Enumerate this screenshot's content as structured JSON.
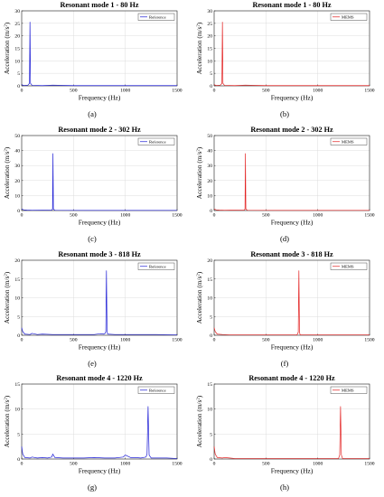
{
  "chart_data": [
    {
      "type": "line",
      "title": "Resonant mode 1 - 80 Hz",
      "xlabel": "Frequency (Hz)",
      "ylabel": "Acceleration (m/s²)",
      "ylabel_main": "Acceleration (m/s",
      "ylabel_sup": "2",
      "ylabel_end": ")",
      "xlim": [
        0,
        1500
      ],
      "ylim": [
        0,
        30
      ],
      "xticks": [
        0,
        500,
        1000,
        1500
      ],
      "yticks": [
        0,
        5,
        10,
        15,
        20,
        25,
        30
      ],
      "grid": true,
      "legend_position": "top-right",
      "color": "#1f1fd6",
      "series": [
        {
          "name": "Reference",
          "x": [
            0,
            15,
            30,
            60,
            75,
            80,
            85,
            100,
            200,
            300,
            500,
            1000,
            1500
          ],
          "y": [
            0.5,
            0.2,
            0.2,
            0.3,
            1.0,
            25.5,
            1.0,
            0.2,
            0.1,
            0.3,
            0.1,
            0.1,
            0.1
          ]
        }
      ],
      "caption": "(a)"
    },
    {
      "type": "line",
      "title": "Resonant mode 1 - 80 Hz",
      "xlabel": "Frequency (Hz)",
      "ylabel": "Acceleration (m/s²)",
      "ylabel_main": "Acceleration (m/s",
      "ylabel_sup": "2",
      "ylabel_end": ")",
      "xlim": [
        0,
        1500
      ],
      "ylim": [
        0,
        30
      ],
      "xticks": [
        0,
        500,
        1000,
        1500
      ],
      "yticks": [
        0,
        5,
        10,
        15,
        20,
        25,
        30
      ],
      "grid": true,
      "legend_position": "top-right",
      "color": "#e32222",
      "series": [
        {
          "name": "MEMS",
          "x": [
            0,
            15,
            30,
            60,
            75,
            80,
            85,
            100,
            200,
            300,
            500,
            1000,
            1500
          ],
          "y": [
            0.5,
            0.2,
            0.2,
            0.3,
            1.0,
            25.5,
            1.0,
            0.2,
            0.1,
            0.3,
            0.1,
            0.1,
            0.1
          ]
        }
      ],
      "caption": "(b)"
    },
    {
      "type": "line",
      "title": "Resonant mode 2 - 302 Hz",
      "xlabel": "Frequency (Hz)",
      "ylabel": "Acceleration (m/s²)",
      "ylabel_main": "Acceleration (m/s",
      "ylabel_sup": "2",
      "ylabel_end": ")",
      "xlim": [
        0,
        1500
      ],
      "ylim": [
        0,
        50
      ],
      "xticks": [
        0,
        500,
        1000,
        1500
      ],
      "yticks": [
        0,
        10,
        20,
        30,
        40,
        50
      ],
      "grid": true,
      "legend_position": "top-right",
      "color": "#1f1fd6",
      "series": [
        {
          "name": "Reference",
          "x": [
            0,
            20,
            50,
            100,
            290,
            298,
            302,
            306,
            320,
            600,
            1000,
            1500
          ],
          "y": [
            1.0,
            0.5,
            0.3,
            0.2,
            0.3,
            1.0,
            38.0,
            1.0,
            0.2,
            0.1,
            0.1,
            0.1
          ]
        }
      ],
      "caption": "(c)"
    },
    {
      "type": "line",
      "title": "Resonant mode 2 - 302 Hz",
      "xlabel": "Frequency (Hz)",
      "ylabel": "Acceleration (m/s²)",
      "ylabel_main": "Acceleration (m/s",
      "ylabel_sup": "2",
      "ylabel_end": ")",
      "xlim": [
        0,
        1500
      ],
      "ylim": [
        0,
        50
      ],
      "xticks": [
        0,
        500,
        1000,
        1500
      ],
      "yticks": [
        0,
        10,
        20,
        30,
        40,
        50
      ],
      "grid": true,
      "legend_position": "top-right",
      "color": "#e32222",
      "series": [
        {
          "name": "MEMS",
          "x": [
            0,
            20,
            50,
            100,
            290,
            298,
            302,
            306,
            320,
            600,
            1000,
            1500
          ],
          "y": [
            1.0,
            0.5,
            0.3,
            0.2,
            0.3,
            1.0,
            38.0,
            1.0,
            0.2,
            0.1,
            0.1,
            0.1
          ]
        }
      ],
      "caption": "(d)"
    },
    {
      "type": "line",
      "title": "Resonant mode 3 - 818 Hz",
      "xlabel": "Frequency (Hz)",
      "ylabel": "Acceleration (m/s²)",
      "ylabel_main": "Acceleration (m/s",
      "ylabel_sup": "2",
      "ylabel_end": ")",
      "xlim": [
        0,
        1500
      ],
      "ylim": [
        0,
        20
      ],
      "xticks": [
        0,
        500,
        1000,
        1500
      ],
      "yticks": [
        0,
        5,
        10,
        15,
        20
      ],
      "grid": true,
      "legend_position": "top-right",
      "color": "#1f1fd6",
      "series": [
        {
          "name": "Reference",
          "x": [
            0,
            10,
            30,
            80,
            100,
            150,
            200,
            300,
            500,
            700,
            760,
            790,
            805,
            812,
            818,
            824,
            830,
            900,
            1000,
            1200,
            1300,
            1500
          ],
          "y": [
            2.0,
            1.0,
            0.3,
            0.2,
            0.5,
            0.2,
            0.3,
            0.2,
            0.2,
            0.2,
            0.4,
            0.3,
            0.5,
            1.0,
            17.2,
            1.0,
            0.3,
            0.2,
            0.2,
            0.2,
            0.2,
            0.1
          ]
        }
      ],
      "caption": "(e)"
    },
    {
      "type": "line",
      "title": "Resonant mode 3 - 818 Hz",
      "xlabel": "Frequency (Hz)",
      "ylabel": "Acceleration (m/s²)",
      "ylabel_main": "Acceleration (m/s",
      "ylabel_sup": "2",
      "ylabel_end": ")",
      "xlim": [
        0,
        1500
      ],
      "ylim": [
        0,
        20
      ],
      "xticks": [
        0,
        500,
        1000,
        1500
      ],
      "yticks": [
        0,
        5,
        10,
        15,
        20
      ],
      "grid": true,
      "legend_position": "top-right",
      "color": "#e32222",
      "series": [
        {
          "name": "MEMS",
          "x": [
            0,
            10,
            30,
            80,
            150,
            300,
            500,
            800,
            812,
            818,
            824,
            830,
            1000,
            1500
          ],
          "y": [
            2.0,
            1.0,
            0.3,
            0.2,
            0.1,
            0.1,
            0.1,
            0.1,
            0.8,
            17.2,
            0.8,
            0.1,
            0.1,
            0.1
          ]
        }
      ],
      "caption": "(f)"
    },
    {
      "type": "line",
      "title": "Resonant mode 4 - 1220 Hz",
      "xlabel": "Frequency (Hz)",
      "ylabel": "Acceleration (m/s²)",
      "ylabel_main": "Acceleration (m/s",
      "ylabel_sup": "2",
      "ylabel_end": ")",
      "xlim": [
        0,
        1500
      ],
      "ylim": [
        0,
        15
      ],
      "xticks": [
        0,
        500,
        1000,
        1500
      ],
      "yticks": [
        0,
        5,
        10,
        15
      ],
      "grid": true,
      "legend_position": "top-right",
      "color": "#1f1fd6",
      "series": [
        {
          "name": "Reference",
          "x": [
            0,
            10,
            30,
            80,
            100,
            150,
            200,
            250,
            290,
            300,
            320,
            400,
            500,
            600,
            700,
            800,
            900,
            980,
            1000,
            1050,
            1100,
            1150,
            1200,
            1210,
            1220,
            1230,
            1250,
            1300,
            1400,
            1500
          ],
          "y": [
            2.5,
            1.0,
            0.3,
            0.2,
            0.4,
            0.2,
            0.3,
            0.2,
            0.4,
            1.0,
            0.3,
            0.2,
            0.2,
            0.2,
            0.3,
            0.2,
            0.2,
            0.4,
            0.8,
            0.3,
            0.3,
            0.2,
            0.4,
            1.0,
            10.5,
            0.8,
            0.2,
            0.2,
            0.2,
            0.1
          ]
        }
      ],
      "caption": "(g)"
    },
    {
      "type": "line",
      "title": "Resonant mode 4 - 1220 Hz",
      "xlabel": "Frequency (Hz)",
      "ylabel": "Acceleration (m/s²)",
      "ylabel_main": "Acceleration (m/s",
      "ylabel_sup": "2",
      "ylabel_end": ")",
      "xlim": [
        0,
        1500
      ],
      "ylim": [
        0,
        15
      ],
      "xticks": [
        0,
        500,
        1000,
        1500
      ],
      "yticks": [
        0,
        5,
        10,
        15
      ],
      "grid": true,
      "legend_position": "top-right",
      "color": "#e32222",
      "series": [
        {
          "name": "MEMS",
          "x": [
            0,
            10,
            30,
            80,
            100,
            150,
            200,
            500,
            800,
            1000,
            1200,
            1212,
            1220,
            1228,
            1240,
            1500
          ],
          "y": [
            2.5,
            1.0,
            0.3,
            0.2,
            0.3,
            0.2,
            0.1,
            0.1,
            0.1,
            0.1,
            0.1,
            0.8,
            10.5,
            0.8,
            0.1,
            0.1
          ]
        }
      ],
      "caption": "(h)"
    }
  ]
}
